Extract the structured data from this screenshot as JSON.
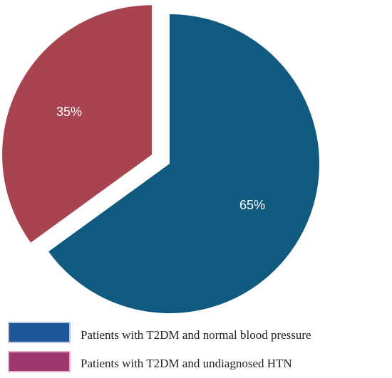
{
  "chart_data": {
    "type": "pie",
    "title": "",
    "slices": [
      {
        "name": "Patients with T2DM and normal blood pressure",
        "value": 65,
        "label": "65%",
        "color": "#0f5a7e",
        "exploded": false
      },
      {
        "name": "Patients with T2DM and undiagnosed HTN",
        "value": 35,
        "label": "35%",
        "color": "#a84450",
        "exploded": true
      }
    ],
    "legend": {
      "placement": "bottom-right",
      "entries": [
        {
          "label": "Patients with T2DM and normal blood pressure",
          "swatch_color": "#1d5598"
        },
        {
          "label": "Patients with T2DM and undiagnosed HTN",
          "swatch_color": "#a03670"
        }
      ]
    }
  }
}
